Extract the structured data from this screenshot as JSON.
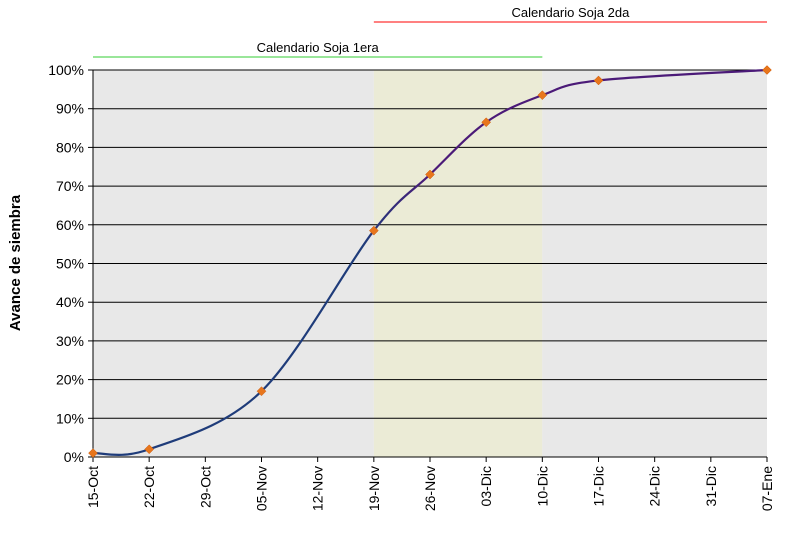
{
  "chart_data": {
    "type": "line",
    "title": "",
    "xlabel": "",
    "ylabel": "Avance de siembra",
    "x_ticks": [
      "15-Oct",
      "22-Oct",
      "29-Oct",
      "05-Nov",
      "12-Nov",
      "19-Nov",
      "26-Nov",
      "03-Dic",
      "10-Dic",
      "17-Dic",
      "24-Dic",
      "31-Dic",
      "07-Ene"
    ],
    "y_ticks": [
      "0%",
      "10%",
      "20%",
      "30%",
      "40%",
      "50%",
      "60%",
      "70%",
      "80%",
      "90%",
      "100%"
    ],
    "ylim": [
      0,
      1
    ],
    "grid": "horizontal",
    "series": [
      {
        "x": [
          "15-Oct",
          "22-Oct",
          "05-Nov",
          "19-Nov",
          "26-Nov",
          "03-Dic",
          "10-Dic",
          "17-Dic",
          "07-Ene"
        ],
        "values": [
          0.01,
          0.02,
          0.17,
          0.585,
          0.73,
          0.865,
          0.935,
          0.973,
          1.0
        ],
        "line_color_1": "#1f3c7a",
        "line_color_2": "#4b1a78",
        "marker_color": "#e8761c",
        "marker": "diamond"
      }
    ],
    "annotations": [
      {
        "label": "Calendario Soja 1era",
        "from": "15-Oct",
        "to": "10-Dic",
        "color": "#33cc33"
      },
      {
        "label": "Calendario Soja 2da",
        "from": "19-Nov",
        "to": "07-Ene",
        "color": "#ff0000"
      }
    ],
    "shaded_periods": [
      {
        "from": "15-Oct",
        "to": "19-Nov",
        "color": "#e8e8e8"
      },
      {
        "from": "19-Nov",
        "to": "10-Dic",
        "color": "#ebebd6"
      },
      {
        "from": "10-Dic",
        "to": "07-Ene",
        "color": "#e8e8e8"
      }
    ]
  }
}
